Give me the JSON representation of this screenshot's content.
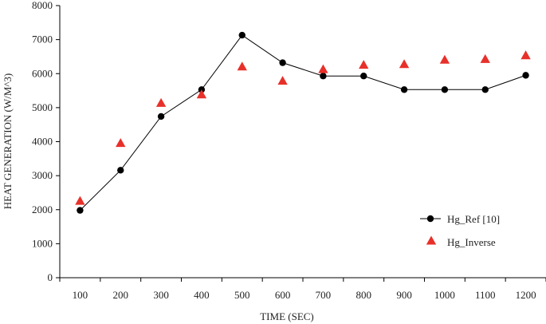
{
  "chart_data": {
    "type": "line",
    "title": "",
    "xlabel": "TIME (SEC)",
    "ylabel": "HEAT GENERATION (W/M^3)",
    "x": [
      100,
      200,
      300,
      400,
      500,
      600,
      700,
      800,
      900,
      1000,
      1100,
      1200
    ],
    "x_tick_labels": [
      "100",
      "200",
      "300",
      "400",
      "500",
      "600",
      "700",
      "800",
      "900",
      "1000",
      "1100",
      "1200"
    ],
    "y_tick_labels": [
      "0",
      "1000",
      "2000",
      "3000",
      "4000",
      "5000",
      "6000",
      "7000",
      "8000"
    ],
    "ylim": [
      0,
      8000
    ],
    "grid": false,
    "legend_position": "right",
    "series": [
      {
        "name": "Hg_Ref [10]",
        "marker": "circle",
        "line": true,
        "color": "#000000",
        "values": [
          1980,
          3160,
          4740,
          5530,
          7130,
          6320,
          5930,
          5930,
          5530,
          5530,
          5530,
          5950
        ]
      },
      {
        "name": "Hg_Inverse",
        "marker": "triangle",
        "line": false,
        "color": "#e8302a",
        "values": [
          2250,
          3950,
          5130,
          5380,
          6200,
          5780,
          6120,
          6250,
          6270,
          6400,
          6420,
          6530
        ]
      }
    ]
  }
}
